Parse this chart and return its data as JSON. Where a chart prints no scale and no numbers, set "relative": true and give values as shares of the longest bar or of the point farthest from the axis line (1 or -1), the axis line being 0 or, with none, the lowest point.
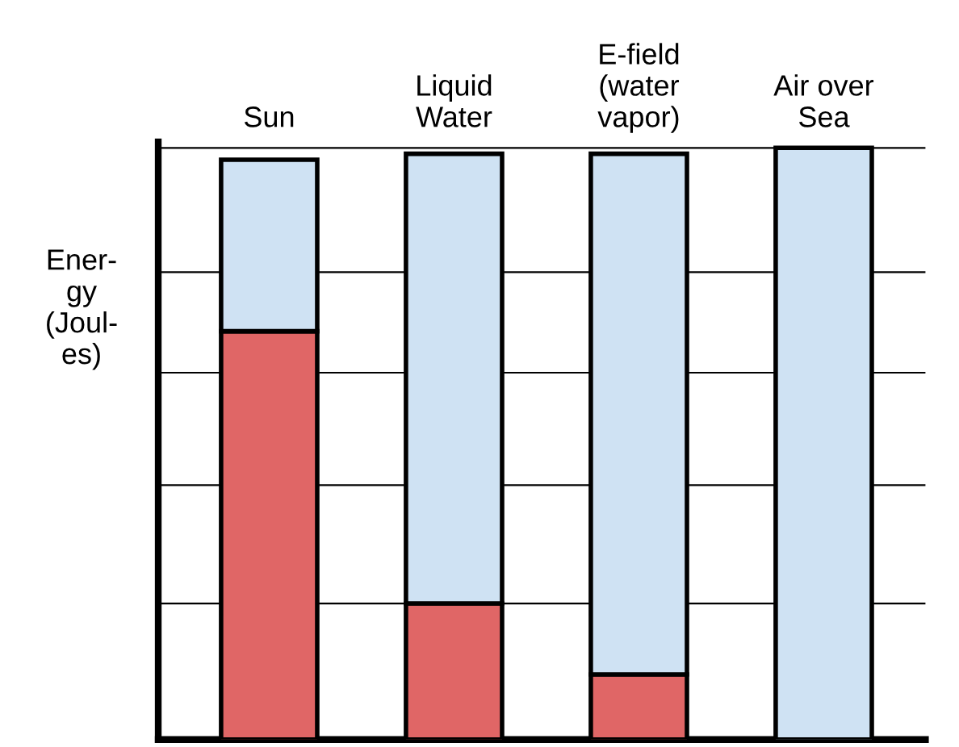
{
  "chart_data": {
    "type": "bar",
    "stacked": true,
    "relative": true,
    "ylabel": "Ener-\ngy\n(Joul-\nes)",
    "categories": [
      "Sun",
      "Liquid\nWater",
      "E-field\n(water\nvapor)",
      "Air over\nSea"
    ],
    "series": [
      {
        "color": "#e06666",
        "values": [
          0.69,
          0.23,
          0.11,
          0
        ]
      },
      {
        "color": "#cfe2f3",
        "values": [
          0.29,
          0.76,
          0.88,
          1
        ]
      }
    ],
    "ref_lines": [
      {
        "axis": "y",
        "value": 0.23,
        "color": "#000000"
      },
      {
        "axis": "y",
        "value": 0.43,
        "color": "#000000"
      },
      {
        "axis": "y",
        "value": 0.62,
        "color": "#000000"
      },
      {
        "axis": "y",
        "value": 0.79,
        "color": "#000000"
      },
      {
        "axis": "y",
        "value": 1.0,
        "color": "#000000"
      }
    ],
    "legend": false
  }
}
